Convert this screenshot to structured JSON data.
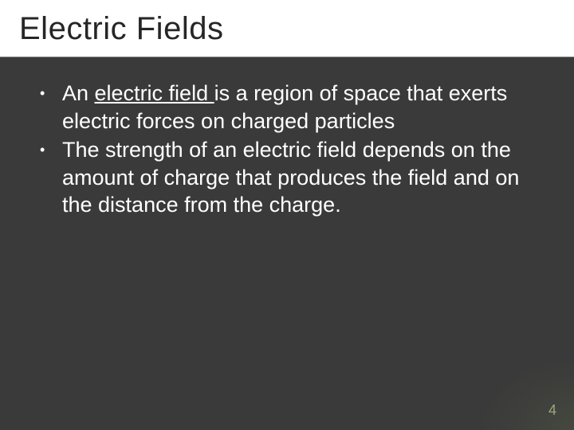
{
  "slide": {
    "title": "Electric Fields",
    "bullets": [
      {
        "pre": "An ",
        "underlined": "electric field ",
        "post": "is a region of space that exerts electric forces on charged particles"
      },
      {
        "pre": "",
        "underlined": "",
        "post": "The strength of an electric field depends on the amount of charge that produces the field and on the distance from the charge."
      }
    ],
    "page_number": "4"
  },
  "style": {
    "background_color": "#3a3a3a",
    "title_bg": "#ffffff",
    "title_color": "#262626",
    "title_fontsize": 40,
    "body_color": "#ffffff",
    "body_fontsize": 27,
    "pagenum_color": "#9aa77a",
    "pagenum_fontsize": 18,
    "accent_color": "#788b5a"
  }
}
